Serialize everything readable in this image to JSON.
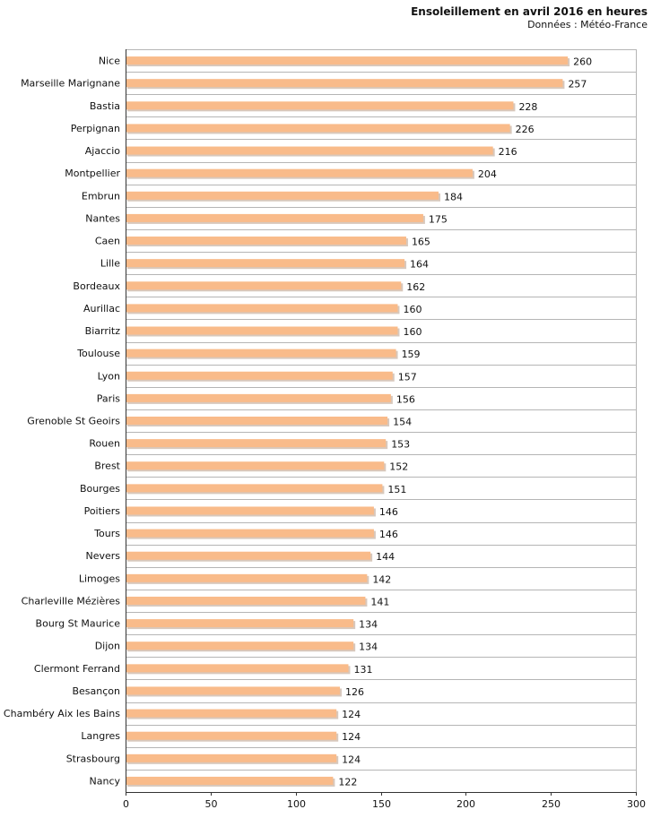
{
  "chart_data": {
    "type": "bar",
    "orientation": "horizontal",
    "title": "Ensoleillement en avril 2016 en heures",
    "subtitle": "Données : Météo-France",
    "xlabel": "",
    "ylabel": "",
    "xlim": [
      0,
      300
    ],
    "x_ticks": [
      0,
      50,
      100,
      150,
      200,
      250,
      300
    ],
    "bar_color": "#f9bb8a",
    "bar_shadow_color": "#d8c8bc",
    "grid": true,
    "categories": [
      "Nice",
      "Marseille Marignane",
      "Bastia",
      "Perpignan",
      "Ajaccio",
      "Montpellier",
      "Embrun",
      "Nantes",
      "Caen",
      "Lille",
      "Bordeaux",
      "Aurillac",
      "Biarritz",
      "Toulouse",
      "Lyon",
      "Paris",
      "Grenoble St Geoirs",
      "Rouen",
      "Brest",
      "Bourges",
      "Poitiers",
      "Tours",
      "Nevers",
      "Limoges",
      "Charleville Mézières",
      "Bourg St Maurice",
      "Dijon",
      "Clermont Ferrand",
      "Besançon",
      "Chambéry Aix les Bains",
      "Langres",
      "Strasbourg",
      "Nancy"
    ],
    "values": [
      260,
      257,
      228,
      226,
      216,
      204,
      184,
      175,
      165,
      164,
      162,
      160,
      160,
      159,
      157,
      156,
      154,
      153,
      152,
      151,
      146,
      146,
      144,
      142,
      141,
      134,
      134,
      131,
      126,
      124,
      124,
      124,
      122
    ]
  }
}
